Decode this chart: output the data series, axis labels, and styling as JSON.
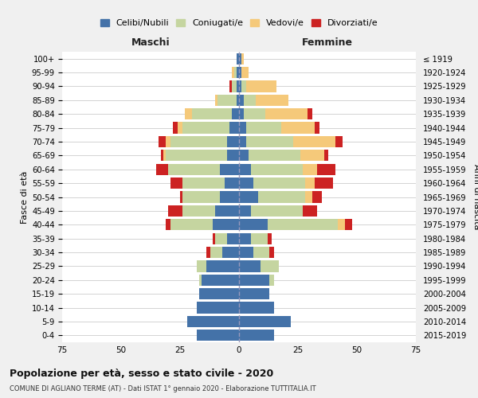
{
  "age_groups": [
    "0-4",
    "5-9",
    "10-14",
    "15-19",
    "20-24",
    "25-29",
    "30-34",
    "35-39",
    "40-44",
    "45-49",
    "50-54",
    "55-59",
    "60-64",
    "65-69",
    "70-74",
    "75-79",
    "80-84",
    "85-89",
    "90-94",
    "95-99",
    "100+"
  ],
  "birth_years": [
    "2015-2019",
    "2010-2014",
    "2005-2009",
    "2000-2004",
    "1995-1999",
    "1990-1994",
    "1985-1989",
    "1980-1984",
    "1975-1979",
    "1970-1974",
    "1965-1969",
    "1960-1964",
    "1955-1959",
    "1950-1954",
    "1945-1949",
    "1940-1944",
    "1935-1939",
    "1930-1934",
    "1925-1929",
    "1920-1924",
    "≤ 1919"
  ],
  "colors": {
    "celibi": "#4472a8",
    "coniugati": "#c5d5a0",
    "vedovi": "#f5c97a",
    "divorziati": "#cc2222"
  },
  "maschi": {
    "celibi": [
      18,
      22,
      18,
      17,
      16,
      14,
      7,
      5,
      11,
      10,
      8,
      6,
      8,
      5,
      5,
      4,
      3,
      1,
      1,
      1,
      1
    ],
    "coniugati": [
      0,
      0,
      0,
      0,
      1,
      4,
      5,
      5,
      18,
      14,
      16,
      18,
      22,
      26,
      24,
      20,
      17,
      8,
      2,
      1,
      0
    ],
    "vedovi": [
      0,
      0,
      0,
      0,
      0,
      0,
      0,
      0,
      0,
      0,
      0,
      0,
      0,
      1,
      2,
      2,
      3,
      1,
      0,
      1,
      0
    ],
    "divorziati": [
      0,
      0,
      0,
      0,
      0,
      0,
      2,
      1,
      2,
      6,
      1,
      5,
      5,
      1,
      3,
      2,
      0,
      0,
      1,
      0,
      0
    ]
  },
  "femmine": {
    "celibi": [
      15,
      22,
      15,
      13,
      13,
      9,
      6,
      5,
      12,
      5,
      8,
      6,
      5,
      4,
      3,
      3,
      2,
      2,
      1,
      1,
      1
    ],
    "coniugati": [
      0,
      0,
      0,
      0,
      2,
      8,
      7,
      7,
      30,
      22,
      20,
      22,
      22,
      22,
      20,
      15,
      9,
      5,
      2,
      0,
      0
    ],
    "vedovi": [
      0,
      0,
      0,
      0,
      0,
      0,
      0,
      0,
      3,
      0,
      3,
      4,
      6,
      10,
      18,
      14,
      18,
      14,
      13,
      3,
      1
    ],
    "divorziati": [
      0,
      0,
      0,
      0,
      0,
      0,
      2,
      2,
      3,
      6,
      4,
      8,
      8,
      2,
      3,
      2,
      2,
      0,
      0,
      0,
      0
    ]
  },
  "xlim": 75,
  "title": "Popolazione per età, sesso e stato civile - 2020",
  "subtitle": "COMUNE DI AGLIANO TERME (AT) - Dati ISTAT 1° gennaio 2020 - Elaborazione TUTTITALIA.IT",
  "ylabel_left": "Fasce di età",
  "ylabel_right": "Anni di nascita",
  "xlabel_left": "Maschi",
  "xlabel_right": "Femmine",
  "legend_labels": [
    "Celibi/Nubili",
    "Coniugati/e",
    "Vedovi/e",
    "Divorziati/e"
  ],
  "background_color": "#f0f0f0",
  "plot_bg": "#ffffff"
}
